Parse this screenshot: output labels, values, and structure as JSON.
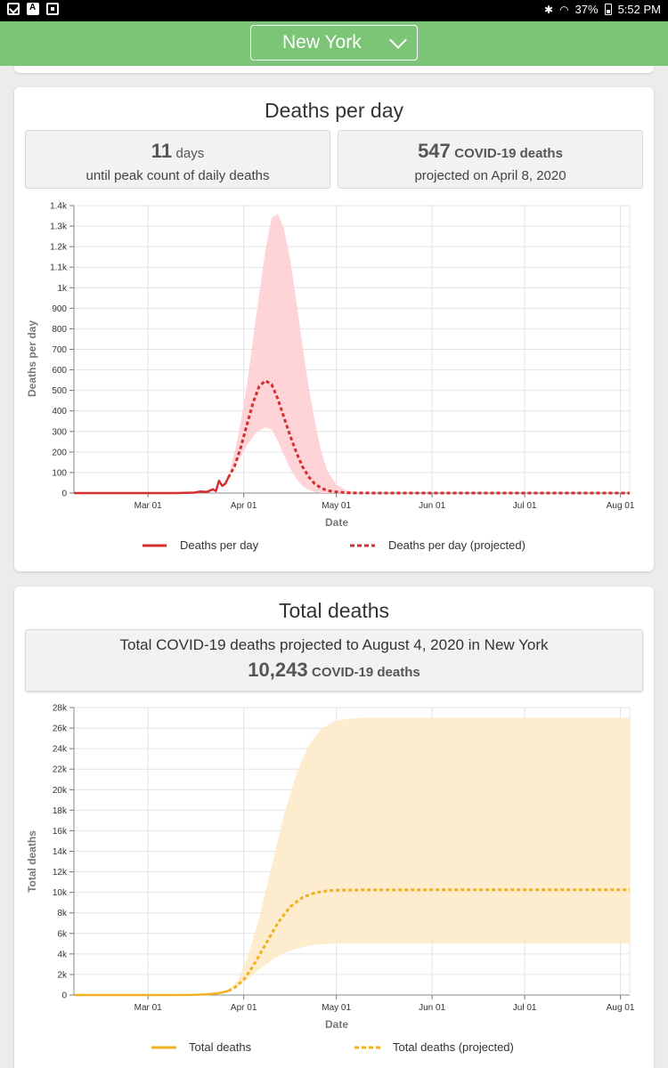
{
  "status_bar": {
    "battery": "37%",
    "time": "5:52 PM",
    "left_icons": [
      "mail-icon",
      "app-icon",
      "gallery-icon"
    ],
    "right_icons": [
      "bluetooth-icon",
      "wifi-icon",
      "battery-icon"
    ]
  },
  "header": {
    "state": "New York",
    "accent_color": "#7cc576"
  },
  "deaths_per_day": {
    "title": "Deaths per day",
    "peak_days_value": "11",
    "peak_days_unit": "days",
    "peak_days_caption": "until peak count of daily deaths",
    "peak_deaths_value": "547",
    "peak_deaths_unit": "COVID-19 deaths",
    "peak_deaths_caption": "projected on April 8, 2020",
    "legend_actual": "Deaths per day",
    "legend_projected": "Deaths per day (projected)"
  },
  "total_deaths": {
    "title": "Total deaths",
    "summary": "Total COVID-19 deaths projected to August 4, 2020 in New York",
    "total_value": "10,243",
    "total_unit": "COVID-19 deaths",
    "legend_actual": "Total deaths",
    "legend_projected": "Total deaths (projected)"
  },
  "chart_data": [
    {
      "type": "line",
      "xlabel": "Date",
      "ylabel": "Deaths per day",
      "x_tick_labels": [
        "Mar 01",
        "Apr 01",
        "May 01",
        "Jun 01",
        "Jul 01",
        "Aug 01"
      ],
      "y_tick_labels": [
        "0",
        "100",
        "200",
        "300",
        "400",
        "500",
        "600",
        "700",
        "800",
        "900",
        "1k",
        "1.1k",
        "1.2k",
        "1.3k",
        "1.4k"
      ],
      "ylim": [
        0,
        1400
      ],
      "x_range": [
        "2020-02-06",
        "2020-08-04"
      ],
      "grid": true,
      "legend_position": "bottom",
      "colors": {
        "line": "#d32f2f",
        "band": "#ffcdd2"
      },
      "series": [
        {
          "name": "Deaths per day",
          "style": "solid",
          "x": [
            "2020-02-06",
            "2020-03-01",
            "2020-03-10",
            "2020-03-16",
            "2020-03-18",
            "2020-03-20",
            "2020-03-22",
            "2020-03-23",
            "2020-03-24",
            "2020-03-25",
            "2020-03-26",
            "2020-03-27"
          ],
          "y": [
            0,
            0,
            0,
            2,
            8,
            5,
            18,
            10,
            60,
            35,
            45,
            75
          ]
        },
        {
          "name": "Deaths per day (projected)",
          "style": "dashed",
          "x": [
            "2020-03-27",
            "2020-03-29",
            "2020-03-31",
            "2020-04-02",
            "2020-04-04",
            "2020-04-06",
            "2020-04-08",
            "2020-04-10",
            "2020-04-12",
            "2020-04-14",
            "2020-04-16",
            "2020-04-18",
            "2020-04-20",
            "2020-04-22",
            "2020-04-24",
            "2020-04-26",
            "2020-04-28",
            "2020-05-01",
            "2020-05-05",
            "2020-05-15",
            "2020-06-01",
            "2020-07-01",
            "2020-08-04"
          ],
          "y": [
            75,
            130,
            220,
            330,
            440,
            520,
            547,
            530,
            460,
            370,
            280,
            200,
            130,
            80,
            45,
            25,
            12,
            5,
            1,
            0,
            0,
            0,
            0
          ]
        }
      ],
      "band": {
        "x": [
          "2020-03-27",
          "2020-03-30",
          "2020-04-02",
          "2020-04-05",
          "2020-04-08",
          "2020-04-10",
          "2020-04-12",
          "2020-04-14",
          "2020-04-16",
          "2020-04-18",
          "2020-04-20",
          "2020-04-22",
          "2020-04-24",
          "2020-04-26",
          "2020-04-28",
          "2020-05-01",
          "2020-05-04",
          "2020-05-08",
          "2020-05-15",
          "2020-06-01",
          "2020-08-04"
        ],
        "upper": [
          75,
          260,
          520,
          860,
          1180,
          1340,
          1360,
          1290,
          1140,
          940,
          720,
          520,
          350,
          210,
          110,
          40,
          15,
          3,
          0,
          0,
          0
        ],
        "lower": [
          75,
          150,
          230,
          295,
          320,
          310,
          255,
          185,
          120,
          70,
          35,
          15,
          5,
          0,
          0,
          0,
          0,
          0,
          0,
          0,
          0
        ]
      }
    },
    {
      "type": "line",
      "xlabel": "Date",
      "ylabel": "Total deaths",
      "x_tick_labels": [
        "Mar 01",
        "Apr 01",
        "May 01",
        "Jun 01",
        "Jul 01",
        "Aug 01"
      ],
      "y_tick_labels": [
        "0",
        "2k",
        "4k",
        "6k",
        "8k",
        "10k",
        "12k",
        "14k",
        "16k",
        "18k",
        "20k",
        "22k",
        "24k",
        "26k",
        "28k"
      ],
      "ylim": [
        0,
        28000
      ],
      "x_range": [
        "2020-02-06",
        "2020-08-04"
      ],
      "grid": true,
      "legend_position": "bottom",
      "colors": {
        "line": "#f0b020",
        "band": "#fde9c4"
      },
      "series": [
        {
          "name": "Total deaths",
          "style": "solid",
          "x": [
            "2020-02-06",
            "2020-03-01",
            "2020-03-15",
            "2020-03-20",
            "2020-03-23",
            "2020-03-25",
            "2020-03-27"
          ],
          "y": [
            0,
            0,
            10,
            60,
            150,
            250,
            400
          ]
        },
        {
          "name": "Total deaths (projected)",
          "style": "dashed",
          "x": [
            "2020-03-27",
            "2020-03-29",
            "2020-04-01",
            "2020-04-04",
            "2020-04-08",
            "2020-04-12",
            "2020-04-16",
            "2020-04-20",
            "2020-04-24",
            "2020-04-28",
            "2020-05-01",
            "2020-05-10",
            "2020-06-01",
            "2020-07-01",
            "2020-08-04"
          ],
          "y": [
            400,
            700,
            1500,
            2800,
            4900,
            7000,
            8600,
            9500,
            9950,
            10150,
            10210,
            10240,
            10243,
            10243,
            10243
          ]
        }
      ],
      "band": {
        "x": [
          "2020-03-27",
          "2020-03-30",
          "2020-04-02",
          "2020-04-06",
          "2020-04-10",
          "2020-04-14",
          "2020-04-18",
          "2020-04-22",
          "2020-04-26",
          "2020-04-30",
          "2020-05-04",
          "2020-05-10",
          "2020-05-20",
          "2020-06-01",
          "2020-08-04"
        ],
        "upper": [
          400,
          1400,
          3500,
          7500,
          12500,
          17500,
          21500,
          24300,
          25900,
          26600,
          26900,
          27000,
          27000,
          27000,
          27000
        ],
        "lower": [
          400,
          800,
          1500,
          2500,
          3400,
          4100,
          4500,
          4800,
          4950,
          5000,
          5000,
          5000,
          5000,
          5000,
          5000
        ]
      }
    }
  ]
}
